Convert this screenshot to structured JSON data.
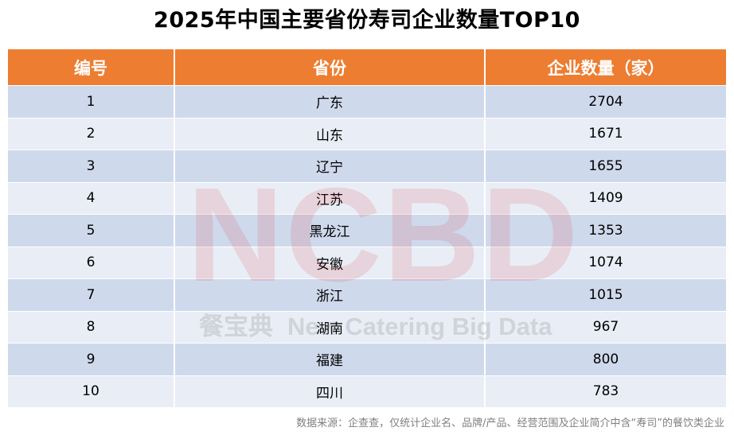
{
  "title": "2025年中国主要省份寿司企业数量TOP10",
  "table": {
    "headers": [
      "编号",
      "省份",
      "企业数量（家）"
    ],
    "rows": [
      [
        "1",
        "广东",
        "2704"
      ],
      [
        "2",
        "山东",
        "1671"
      ],
      [
        "3",
        "辽宁",
        "1655"
      ],
      [
        "4",
        "江苏",
        "1409"
      ],
      [
        "5",
        "黑龙江",
        "1353"
      ],
      [
        "6",
        "安徽",
        "1074"
      ],
      [
        "7",
        "浙江",
        "1015"
      ],
      [
        "8",
        "湖南",
        "967"
      ],
      [
        "9",
        "福建",
        "800"
      ],
      [
        "10",
        "四川",
        "783"
      ]
    ]
  },
  "watermark": {
    "logo": "NCBD",
    "cn_name": "餐宝典",
    "en_name": "New Catering Big Data"
  },
  "source_note": "数据来源：企查查，仅统计企业名、品牌/产品、经营范围及企业简介中含“寿司”的餐饮类企业",
  "colors": {
    "header_bg": "#ed7d31",
    "row_odd_bg": "#cfd9ec",
    "row_even_bg": "#e9edf6"
  }
}
